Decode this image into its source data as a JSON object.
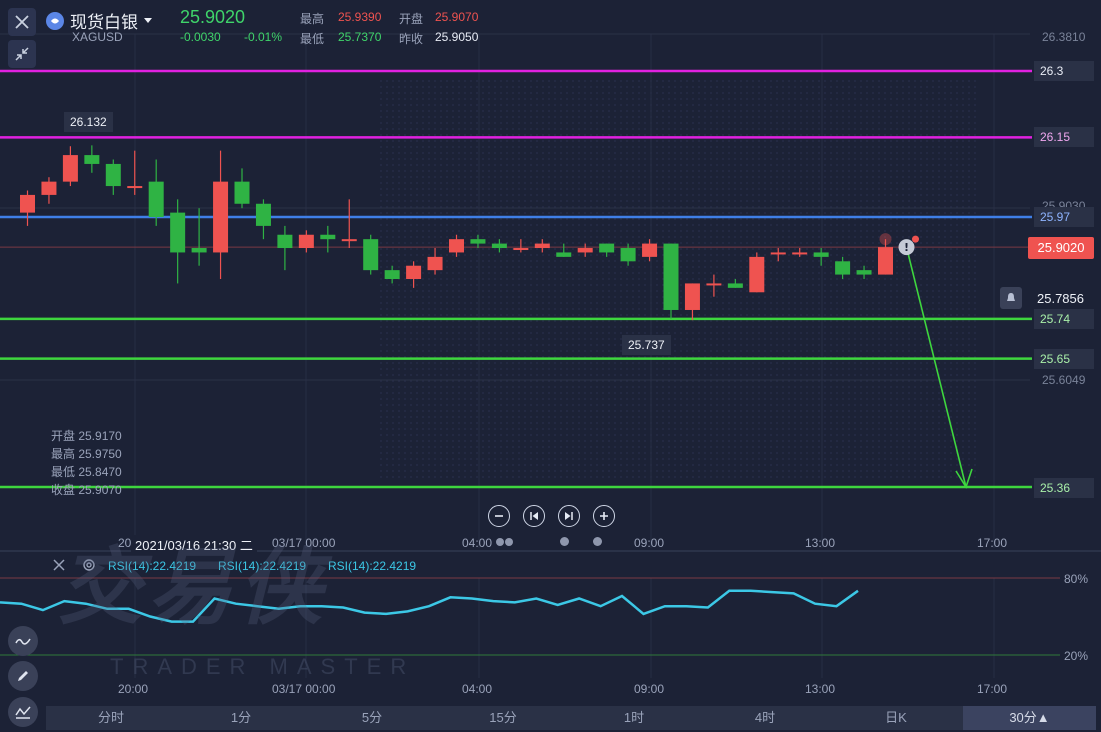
{
  "header": {
    "close_icon": "close-icon",
    "collapse_icon": "collapse-arrows-icon",
    "symbol_name": "现货白银",
    "symbol_code": "XAGUSD",
    "price": "25.9020",
    "change": "-0.0030",
    "change_pct": "-0.01%",
    "high_label": "最高",
    "high_value": "25.9390",
    "open_label": "开盘",
    "open_value": "25.9070",
    "low_label": "最低",
    "low_value": "25.7370",
    "prev_close_label": "昨收",
    "prev_close_value": "25.9050"
  },
  "price_axis": {
    "top": "26.3810",
    "mid": "25.9030",
    "low": "25.6049"
  },
  "level_lines": [
    {
      "label": "26.3",
      "value": 26.3,
      "color": "#e021e0"
    },
    {
      "label": "26.15",
      "value": 26.15,
      "color": "#e021e0"
    },
    {
      "label": "25.97",
      "value": 25.97,
      "color": "#3f7fe8"
    },
    {
      "label": "25.74",
      "value": 25.74,
      "color": "#3ed63e"
    },
    {
      "label": "25.65",
      "value": 25.65,
      "color": "#3ed63e"
    },
    {
      "label": "25.36",
      "value": 25.36,
      "color": "#3ed63e"
    }
  ],
  "current_price_tag": "25.9020",
  "alert_price": "25.7856",
  "high_marker": "26.132",
  "low_marker": "25.737",
  "ohlc_overlay": {
    "open": "开盘 25.9170",
    "high": "最高 25.9750",
    "low": "最低 25.8470",
    "close": "收盘 25.9070"
  },
  "crosshair_time": "2021/03/16 21:30 二",
  "time_axis_main": [
    "20:00",
    "03/17 00:00",
    "04:00",
    "09:00",
    "13:00",
    "17:00"
  ],
  "rsi_panel": {
    "label_1": "RSI(14):22.4219",
    "label_2": "RSI(14):22.4219",
    "label_3": "RSI(14):22.4219",
    "level_80": "80%",
    "level_20": "20%",
    "rsi_values": [
      61,
      60,
      55,
      62,
      60,
      56,
      56,
      50,
      46,
      46,
      64,
      60,
      58,
      56,
      58,
      58,
      57,
      53,
      52,
      54,
      58,
      65,
      64,
      62,
      61,
      64,
      59,
      64,
      58,
      66,
      52,
      58,
      58,
      57,
      70,
      70,
      69,
      68,
      60,
      58,
      70
    ]
  },
  "time_axis_rsi": [
    "20:00",
    "03/17 00:00",
    "04:00",
    "09:00",
    "13:00",
    "17:00"
  ],
  "watermark": {
    "cn": "交易侠",
    "en": "TRADER MASTER"
  },
  "timeframe_tabs": [
    "分时",
    "1分",
    "5分",
    "15分",
    "1时",
    "4时",
    "日K",
    "30分▲"
  ],
  "chart_data": {
    "type": "candlestick",
    "symbol": "XAGUSD",
    "interval": "30分",
    "ylim": [
      25.3,
      26.4
    ],
    "candles": [
      {
        "o": 25.98,
        "h": 26.03,
        "l": 25.95,
        "c": 26.02
      },
      {
        "o": 26.02,
        "h": 26.06,
        "l": 26.0,
        "c": 26.05
      },
      {
        "o": 26.05,
        "h": 26.13,
        "l": 26.04,
        "c": 26.11
      },
      {
        "o": 26.11,
        "h": 26.132,
        "l": 26.07,
        "c": 26.09
      },
      {
        "o": 26.09,
        "h": 26.1,
        "l": 26.02,
        "c": 26.04
      },
      {
        "o": 26.04,
        "h": 26.12,
        "l": 26.02,
        "c": 26.04
      },
      {
        "o": 26.05,
        "h": 26.1,
        "l": 25.95,
        "c": 25.97
      },
      {
        "o": 25.98,
        "h": 26.01,
        "l": 25.82,
        "c": 25.89
      },
      {
        "o": 25.9,
        "h": 25.99,
        "l": 25.86,
        "c": 25.89
      },
      {
        "o": 25.89,
        "h": 26.12,
        "l": 25.83,
        "c": 26.05
      },
      {
        "o": 26.05,
        "h": 26.08,
        "l": 25.99,
        "c": 26.0
      },
      {
        "o": 26.0,
        "h": 26.01,
        "l": 25.92,
        "c": 25.95
      },
      {
        "o": 25.93,
        "h": 25.95,
        "l": 25.85,
        "c": 25.9
      },
      {
        "o": 25.9,
        "h": 25.94,
        "l": 25.89,
        "c": 25.93
      },
      {
        "o": 25.93,
        "h": 25.95,
        "l": 25.89,
        "c": 25.92
      },
      {
        "o": 25.92,
        "h": 26.01,
        "l": 25.9,
        "c": 25.92
      },
      {
        "o": 25.92,
        "h": 25.93,
        "l": 25.84,
        "c": 25.85
      },
      {
        "o": 25.85,
        "h": 25.86,
        "l": 25.82,
        "c": 25.83
      },
      {
        "o": 25.83,
        "h": 25.87,
        "l": 25.81,
        "c": 25.86
      },
      {
        "o": 25.85,
        "h": 25.9,
        "l": 25.84,
        "c": 25.88
      },
      {
        "o": 25.89,
        "h": 25.93,
        "l": 25.88,
        "c": 25.92
      },
      {
        "o": 25.92,
        "h": 25.93,
        "l": 25.9,
        "c": 25.91
      },
      {
        "o": 25.91,
        "h": 25.92,
        "l": 25.89,
        "c": 25.9
      },
      {
        "o": 25.9,
        "h": 25.92,
        "l": 25.89,
        "c": 25.9
      },
      {
        "o": 25.9,
        "h": 25.92,
        "l": 25.89,
        "c": 25.91
      },
      {
        "o": 25.89,
        "h": 25.91,
        "l": 25.88,
        "c": 25.88
      },
      {
        "o": 25.89,
        "h": 25.91,
        "l": 25.88,
        "c": 25.9
      },
      {
        "o": 25.91,
        "h": 25.91,
        "l": 25.88,
        "c": 25.89
      },
      {
        "o": 25.9,
        "h": 25.91,
        "l": 25.86,
        "c": 25.87
      },
      {
        "o": 25.88,
        "h": 25.92,
        "l": 25.87,
        "c": 25.91
      },
      {
        "o": 25.91,
        "h": 25.91,
        "l": 25.74,
        "c": 25.76
      },
      {
        "o": 25.76,
        "h": 25.82,
        "l": 25.737,
        "c": 25.82
      },
      {
        "o": 25.82,
        "h": 25.84,
        "l": 25.79,
        "c": 25.82
      },
      {
        "o": 25.82,
        "h": 25.83,
        "l": 25.81,
        "c": 25.81
      },
      {
        "o": 25.8,
        "h": 25.89,
        "l": 25.8,
        "c": 25.88
      },
      {
        "o": 25.89,
        "h": 25.9,
        "l": 25.87,
        "c": 25.89
      },
      {
        "o": 25.89,
        "h": 25.9,
        "l": 25.88,
        "c": 25.89
      },
      {
        "o": 25.89,
        "h": 25.9,
        "l": 25.86,
        "c": 25.88
      },
      {
        "o": 25.87,
        "h": 25.88,
        "l": 25.83,
        "c": 25.84
      },
      {
        "o": 25.85,
        "h": 25.86,
        "l": 25.83,
        "c": 25.84
      },
      {
        "o": 25.84,
        "h": 25.92,
        "l": 25.84,
        "c": 25.902
      }
    ]
  }
}
